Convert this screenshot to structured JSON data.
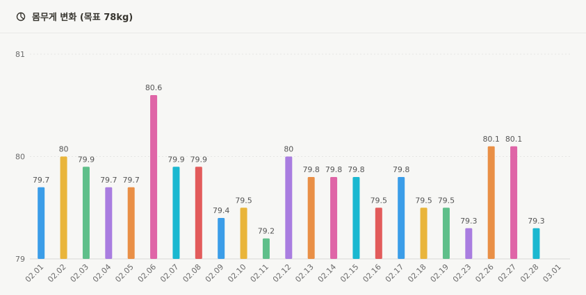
{
  "header": {
    "title": "몸무게 변화 (목표 78kg)",
    "icon": "pie-chart-icon"
  },
  "chart_data": {
    "type": "bar",
    "title": "몸무게 변화 (목표 78kg)",
    "xlabel": "",
    "ylabel": "",
    "ylim": [
      79,
      81
    ],
    "y_ticks": [
      79,
      80,
      81
    ],
    "grid": true,
    "categories": [
      "02.01",
      "02.02",
      "02.03",
      "02.04",
      "02.05",
      "02.06",
      "02.07",
      "02.08",
      "02.09",
      "02.10",
      "02.11",
      "02.12",
      "02.13",
      "02.14",
      "02.15",
      "02.16",
      "02.17",
      "02.18",
      "02.19",
      "02.23",
      "02.26",
      "02.27",
      "02.28",
      "03.01"
    ],
    "values": [
      79.7,
      80,
      79.9,
      79.7,
      79.7,
      80.6,
      79.9,
      79.9,
      79.4,
      79.5,
      79.2,
      80,
      79.8,
      79.8,
      79.8,
      79.5,
      79.8,
      79.5,
      79.5,
      79.3,
      80.1,
      80.1,
      79.3,
      null
    ],
    "value_labels": [
      "79.7",
      "80",
      "79.9",
      "79.7",
      "79.7",
      "80.6",
      "79.9",
      "79.9",
      "79.4",
      "79.5",
      "79.2",
      "80",
      "79.8",
      "79.8",
      "79.8",
      "79.5",
      "79.8",
      "79.5",
      "79.5",
      "79.3",
      "80.1",
      "80.1",
      "79.3",
      ""
    ],
    "colors": [
      "#3b9de8",
      "#e9b53b",
      "#5fbf8a",
      "#a97de0",
      "#e98f46",
      "#df65a7",
      "#1bb8d0",
      "#e25b5b",
      "#3b9de8",
      "#e9b53b",
      "#5fbf8a",
      "#a97de0",
      "#e98f46",
      "#df65a7",
      "#1bb8d0",
      "#e25b5b",
      "#3b9de8",
      "#e9b53b",
      "#5fbf8a",
      "#a97de0",
      "#e98f46",
      "#df65a7",
      "#1bb8d0",
      "#e25b5b"
    ]
  }
}
